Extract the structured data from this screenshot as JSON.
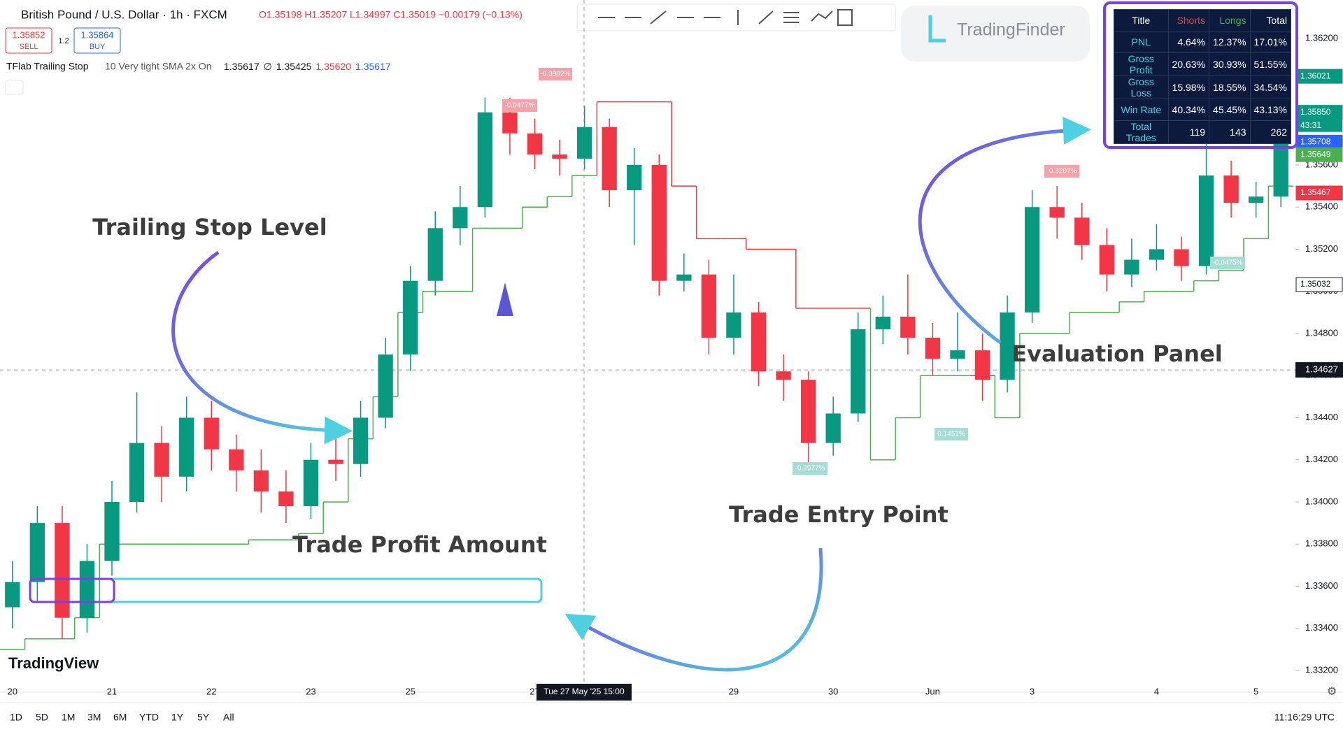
{
  "header": {
    "symbol": "British Pound / U.S. Dollar · 1h · FXCM",
    "ohlc": "O1.35198 H1.35207 L1.34997 C1.35019 −0.00179 (−0.13%)",
    "sell_price": "1.35852",
    "sell": "SELL",
    "spread": "1.2",
    "buy_price": "1.35864",
    "buy": "BUY"
  },
  "indicator": {
    "name": "TFlab Trailing Stop",
    "params": "10 Very tight SMA 2x On",
    "values": [
      "1.35617",
      "∅",
      "1.35425",
      "1.35620",
      "1.35617"
    ]
  },
  "logo": "TradingFinder",
  "watermark": "TradingView",
  "annotations": [
    "Trailing Stop Level",
    "Trade Profit Amount",
    "Trade Entry Point",
    "Evaluation Panel"
  ],
  "trade_labels": [
    "-0.3902%",
    "-0.0477%",
    "-0.3207%",
    "-0.2977%",
    "0.1451%",
    "-0.0475%"
  ],
  "panel": {
    "header": [
      "Title",
      "Shorts",
      "Longs",
      "Total"
    ],
    "rows": [
      [
        "PNL",
        "4.64%",
        "12.37%",
        "17.01%"
      ],
      [
        "Gross Profit",
        "20.63%",
        "30.93%",
        "51.55%"
      ],
      [
        "Gross Loss",
        "15.98%",
        "18.55%",
        "34.54%"
      ],
      [
        "Win Rate",
        "40.34%",
        "45.45%",
        "43.13%"
      ],
      [
        "Total Trades",
        "119",
        "143",
        "262"
      ]
    ]
  },
  "crosshair_time": "Tue 27 May '25   15:00",
  "countdown": "43:31",
  "toolbar": {
    "ranges": [
      "1D",
      "5D",
      "1M",
      "3M",
      "6M",
      "YTD",
      "1Y",
      "5Y",
      "All"
    ],
    "clock": "11:16:29 UTC"
  },
  "chart_data": {
    "type": "candlestick",
    "ylim": [
      1.3316,
      1.3638
    ],
    "yticks": [
      {
        "value": 1.332,
        "label": "1.33200"
      },
      {
        "value": 1.334,
        "label": "1.33400"
      },
      {
        "value": 1.336,
        "label": "1.33600"
      },
      {
        "value": 1.338,
        "label": "1.33800"
      },
      {
        "value": 1.34,
        "label": "1.34000"
      },
      {
        "value": 1.342,
        "label": "1.34200"
      },
      {
        "value": 1.344,
        "label": "1.34400"
      },
      {
        "value": 1.346,
        "label": "1.34600"
      },
      {
        "value": 1.348,
        "label": "1.34800"
      },
      {
        "value": 1.35,
        "label": "1.35000"
      },
      {
        "value": 1.352,
        "label": "1.35200"
      },
      {
        "value": 1.354,
        "label": "1.35400"
      },
      {
        "value": 1.356,
        "label": "1.35600"
      },
      {
        "value": 1.358,
        "label": "1.35800"
      },
      {
        "value": 1.36,
        "label": "1.36000"
      },
      {
        "value": 1.362,
        "label": "1.36200"
      }
    ],
    "categories": [
      "20",
      null,
      null,
      null,
      "21",
      null,
      null,
      null,
      "22",
      null,
      null,
      null,
      "23",
      null,
      null,
      null,
      "25",
      null,
      null,
      null,
      null,
      "27",
      null,
      null,
      null,
      null,
      null,
      null,
      null,
      "29",
      null,
      null,
      null,
      "30",
      null,
      null,
      null,
      "Jun",
      null,
      null,
      null,
      "3",
      null,
      null,
      null,
      null,
      "4",
      null,
      null,
      null,
      "5",
      null
    ],
    "open": [
      1.335,
      1.3362,
      1.339,
      1.3345,
      1.3372,
      1.34,
      1.3428,
      1.3412,
      1.344,
      1.3425,
      1.3415,
      1.3405,
      1.3398,
      1.342,
      1.3418,
      1.344,
      1.347,
      1.3505,
      1.353,
      1.354,
      1.3585,
      1.3575,
      1.3565,
      1.3563,
      1.3578,
      1.3548,
      1.356,
      1.3505,
      1.3508,
      1.3478,
      1.349,
      1.3462,
      1.3458,
      1.3428,
      1.3442,
      1.3482,
      1.3488,
      1.3478,
      1.3468,
      1.3472,
      1.3458,
      1.349,
      1.354,
      1.3535,
      1.3522,
      1.3508,
      1.3515,
      1.352,
      1.3512,
      1.3555,
      1.3542,
      1.3545
    ],
    "high": [
      1.3372,
      1.3398,
      1.3398,
      1.338,
      1.341,
      1.3452,
      1.3436,
      1.345,
      1.3448,
      1.3432,
      1.3425,
      1.3415,
      1.3428,
      1.343,
      1.3448,
      1.3478,
      1.3512,
      1.3538,
      1.355,
      1.3592,
      1.3592,
      1.3582,
      1.3572,
      1.3588,
      1.3582,
      1.3568,
      1.3565,
      1.3518,
      1.3515,
      1.3508,
      1.3495,
      1.347,
      1.3462,
      1.345,
      1.349,
      1.3498,
      1.3508,
      1.3485,
      1.349,
      1.348,
      1.3498,
      1.3548,
      1.355,
      1.3542,
      1.353,
      1.3525,
      1.3532,
      1.3526,
      1.3578,
      1.3562,
      1.3552,
      1.358
    ],
    "low": [
      1.334,
      1.3352,
      1.3335,
      1.3338,
      1.3365,
      1.3395,
      1.34,
      1.3405,
      1.3415,
      1.3405,
      1.3395,
      1.339,
      1.3392,
      1.341,
      1.3412,
      1.3435,
      1.3462,
      1.3498,
      1.3522,
      1.3535,
      1.3565,
      1.3558,
      1.3555,
      1.3558,
      1.354,
      1.3522,
      1.3498,
      1.35,
      1.347,
      1.347,
      1.3455,
      1.3448,
      1.3418,
      1.3422,
      1.3438,
      1.3475,
      1.347,
      1.346,
      1.3462,
      1.3448,
      1.3452,
      1.3485,
      1.3525,
      1.3515,
      1.35,
      1.3502,
      1.351,
      1.3505,
      1.3508,
      1.3535,
      1.3535,
      1.354
    ],
    "close": [
      1.3362,
      1.339,
      1.3345,
      1.3372,
      1.34,
      1.3428,
      1.3412,
      1.344,
      1.3425,
      1.3415,
      1.3405,
      1.3398,
      1.342,
      1.3418,
      1.344,
      1.347,
      1.3505,
      1.353,
      1.354,
      1.3585,
      1.3575,
      1.3565,
      1.3563,
      1.3578,
      1.3548,
      1.356,
      1.3505,
      1.3508,
      1.3478,
      1.349,
      1.3462,
      1.3458,
      1.3428,
      1.3442,
      1.3482,
      1.3488,
      1.3478,
      1.3468,
      1.3472,
      1.3458,
      1.349,
      1.354,
      1.3535,
      1.3522,
      1.3508,
      1.3515,
      1.352,
      1.3512,
      1.3555,
      1.3542,
      1.3545,
      1.357
    ],
    "trailing_stop": [
      1.333,
      1.3335,
      1.3335,
      1.3345,
      1.338,
      1.338,
      1.338,
      1.338,
      1.338,
      1.338,
      1.3382,
      1.3382,
      1.3385,
      1.34,
      1.343,
      1.345,
      1.349,
      1.35,
      1.35,
      1.353,
      1.353,
      1.354,
      1.3545,
      1.3555,
      1.359,
      1.359,
      1.359,
      1.355,
      1.3525,
      1.3525,
      1.352,
      1.352,
      1.3492,
      1.3492,
      1.3492,
      1.342,
      1.344,
      1.346,
      1.346,
      1.346,
      1.344,
      1.348,
      1.348,
      1.349,
      1.349,
      1.3495,
      1.35,
      1.35,
      1.3505,
      1.351,
      1.3525,
      1.355
    ],
    "up_color": "#089981",
    "down_color": "#f23645",
    "stop_long_color": "#4caf50",
    "stop_short_color": "#f23645",
    "crosshair_price": {
      "value": 1.34627,
      "label": "1.34627"
    },
    "price_tags": [
      {
        "value": 1.36021,
        "label": "1.36021",
        "color": "#089981"
      },
      {
        "value": 1.3585,
        "label": "1.35850",
        "color": "#089981"
      },
      {
        "value": 1.35708,
        "label": "1.35708",
        "color": "#131722"
      },
      {
        "value": 1.35708,
        "label": "1.35708",
        "color": "#2962ff"
      },
      {
        "value": 1.35649,
        "label": "1.35649",
        "color": "#4caf50"
      },
      {
        "value": 1.35467,
        "label": "1.35467",
        "color": "#f23645"
      },
      {
        "value": 1.35032,
        "label": "1.35032",
        "color": "#131722"
      }
    ]
  }
}
